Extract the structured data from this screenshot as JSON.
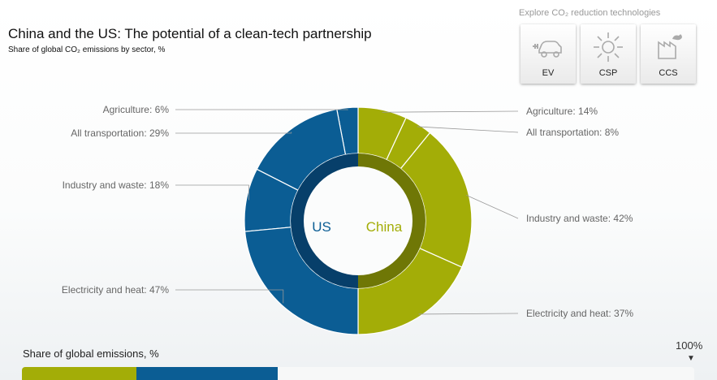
{
  "header": {
    "title": "China and the US: The potential of a clean-tech partnership",
    "subtitle": "Share of global CO₂ emissions by sector, %"
  },
  "explore": {
    "label": "Explore CO₂ reduction technologies",
    "buttons": [
      {
        "label": "EV",
        "icon": "electric-car-icon"
      },
      {
        "label": "CSP",
        "icon": "sun-icon"
      },
      {
        "label": "CCS",
        "icon": "factory-icon"
      }
    ]
  },
  "colors": {
    "us": "#0b5d94",
    "us_inner": "#073f6a",
    "china": "#a3ad07",
    "china_inner": "#6f7706"
  },
  "chart_data": {
    "type": "donut",
    "series": [
      {
        "name": "US",
        "color": "#0b5d94",
        "slices": [
          {
            "label": "Agriculture: 6%",
            "value": 6
          },
          {
            "label": "All transportation: 29%",
            "value": 29
          },
          {
            "label": "Industry and waste: 18%",
            "value": 18
          },
          {
            "label": "Electricity and heat: 47%",
            "value": 47
          }
        ]
      },
      {
        "name": "China",
        "color": "#a3ad07",
        "slices": [
          {
            "label": "Agriculture: 14%",
            "value": 14
          },
          {
            "label": "All transportation: 8%",
            "value": 8
          },
          {
            "label": "Industry and waste: 42%",
            "value": 42
          },
          {
            "label": "Electricity and heat: 37%",
            "value": 37
          }
        ]
      }
    ],
    "center_labels": [
      "US",
      "China"
    ]
  },
  "footer": {
    "label": "Share of global emissions, %",
    "max_label": "100%",
    "bar": [
      {
        "name": "China",
        "color": "#a3ad07",
        "share": 17
      },
      {
        "name": "US",
        "color": "#0b5d94",
        "share": 21
      }
    ]
  }
}
